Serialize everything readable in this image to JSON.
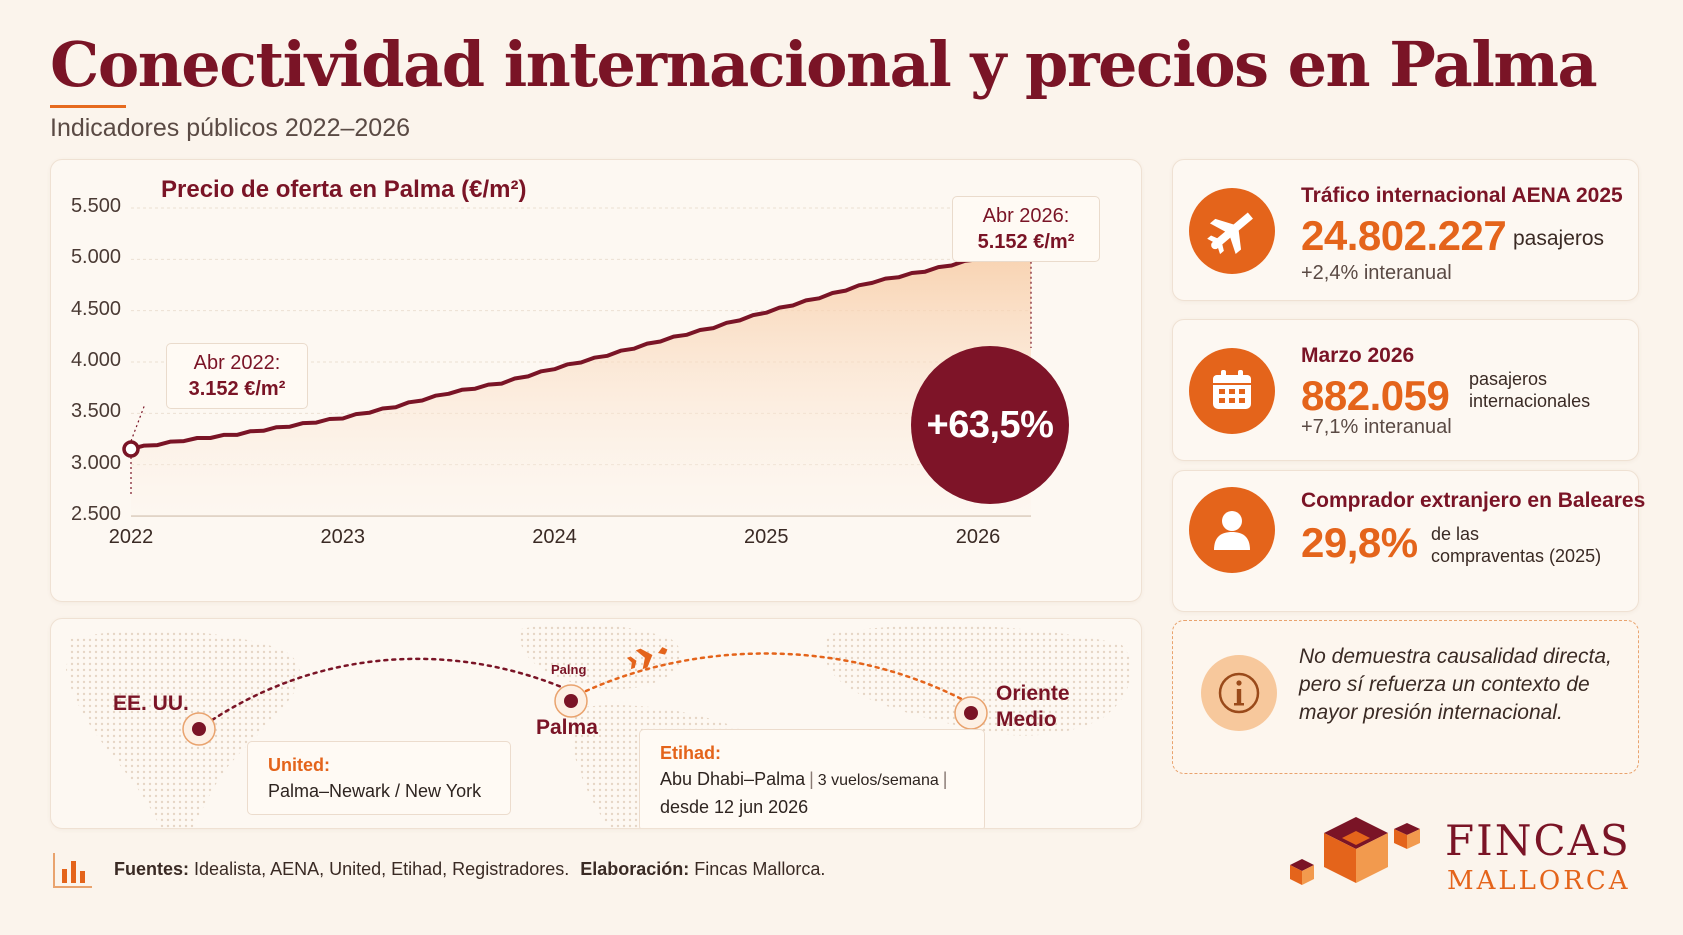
{
  "title": "Conectividad internacional y precios en Palma",
  "subtitle": "Indicadores públicos 2022–2026",
  "chart_data": {
    "type": "area",
    "title": "Precio de oferta en Palma (€/m²)",
    "ylim": [
      2500,
      5500
    ],
    "yticks": [
      "2.500",
      "3.000",
      "3.500",
      "4.000",
      "4.500",
      "5.000",
      "5.500"
    ],
    "xticks": [
      "2022",
      "2023",
      "2024",
      "2025",
      "2026"
    ],
    "x": [
      2022.0,
      2022.25,
      2022.5,
      2022.75,
      2023.0,
      2023.25,
      2023.5,
      2023.75,
      2024.0,
      2024.25,
      2024.5,
      2024.75,
      2025.0,
      2025.25,
      2025.5,
      2025.75,
      2026.0,
      2026.25
    ],
    "values": [
      3152,
      3230,
      3290,
      3370,
      3450,
      3560,
      3690,
      3790,
      3930,
      4060,
      4200,
      4330,
      4480,
      4620,
      4770,
      4880,
      5000,
      5152
    ],
    "callout_start": {
      "label": "Abr 2022:",
      "value": "3.152 €/m²"
    },
    "callout_end": {
      "label": "Abr 2026:",
      "value": "5.152 €/m²"
    },
    "change_badge": "+63,5%",
    "grid": true,
    "legend": "none"
  },
  "stats": [
    {
      "label": "Tráfico internacional AENA 2025",
      "value": "24.802.227",
      "unit": "pasajeros",
      "sub": "+2,4% interanual",
      "icon": "airplane-icon"
    },
    {
      "label": "Marzo 2026",
      "value": "882.059",
      "unit_line1": "pasajeros",
      "unit_line2": "internacionales",
      "sub": "+7,1% interanual",
      "icon": "calendar-icon"
    },
    {
      "label": "Comprador extranjero en Baleares",
      "value": "29,8%",
      "unit_line1": "de las",
      "unit_line2": "compraventas (2025)",
      "icon": "person-icon"
    }
  ],
  "note": "No demuestra causalidad directa, pero sí refuerza un contexto de mayor presión internacional.",
  "map": {
    "usa_label": "EE. UU.",
    "palma_small": "Palng",
    "palma_label": "Palma",
    "middle_east_line1": "Oriente",
    "middle_east_line2": "Medio",
    "united": {
      "title": "United:",
      "route": "Palma–Newark / New York"
    },
    "etihad": {
      "title": "Etihad:",
      "route": "Abu Dhabi–Palma",
      "freq": "3 vuelos/semana",
      "since": "desde 12 jun 2026"
    }
  },
  "sources": {
    "label": "Fuentes:",
    "text": "Idealista, AENA, United, Etihad,  Registradores.",
    "elab_label": "Elaboración:",
    "elab_text": "Fincas Mallorca."
  },
  "logo": {
    "word1": "FINCAS",
    "word2": "MALLORCA"
  },
  "colors": {
    "burgundy": "#7a1426",
    "orange": "#e4641b",
    "background": "#fbf4ec"
  }
}
